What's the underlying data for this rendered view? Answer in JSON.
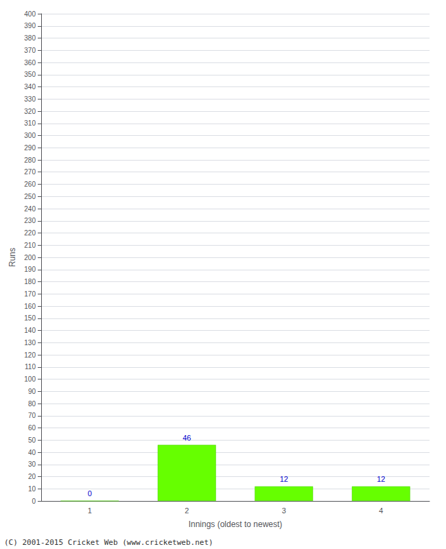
{
  "chart_data": {
    "type": "bar",
    "xlabel": "Innings (oldest to newest)",
    "ylabel": "Runs",
    "categories": [
      "1",
      "2",
      "3",
      "4"
    ],
    "values": [
      0,
      46,
      12,
      12
    ],
    "color": "#66ff00",
    "ylim": [
      0,
      400
    ],
    "yticks": [
      0,
      10,
      20,
      30,
      40,
      50,
      60,
      70,
      80,
      90,
      100,
      110,
      120,
      130,
      140,
      150,
      160,
      170,
      180,
      190,
      200,
      210,
      220,
      230,
      240,
      250,
      260,
      270,
      280,
      290,
      300,
      310,
      320,
      330,
      340,
      350,
      360,
      370,
      380,
      390,
      400
    ],
    "grid": true,
    "data_labels": true,
    "annotations": [
      "(C) 2001-2015 Cricket Web (www.cricketweb.net)"
    ]
  }
}
